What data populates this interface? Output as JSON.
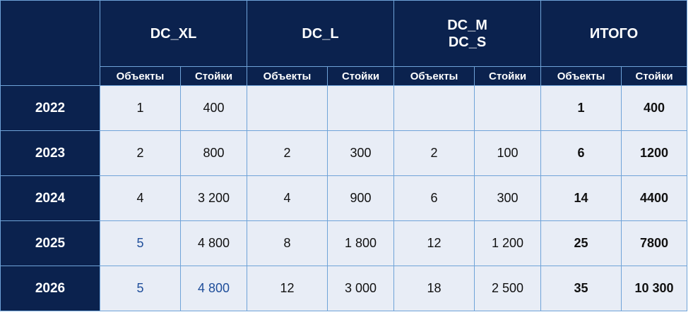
{
  "groups": [
    {
      "label": "DC_XL"
    },
    {
      "label": "DC_L"
    },
    {
      "label": "DC_M\nDC_S",
      "line1": "DC_M",
      "line2": "DC_S"
    },
    {
      "label": "ИТОГО"
    }
  ],
  "subheaders": {
    "objects": "Объекты",
    "racks": "Стойки"
  },
  "rows": [
    {
      "year": "2022",
      "cells": [
        "1",
        "400",
        "",
        "",
        "",
        "",
        "1",
        "400"
      ]
    },
    {
      "year": "2023",
      "cells": [
        "2",
        "800",
        "2",
        "300",
        "2",
        "100",
        "6",
        "1200"
      ]
    },
    {
      "year": "2024",
      "cells": [
        "4",
        "3 200",
        "4",
        "900",
        "6",
        "300",
        "14",
        "4400"
      ]
    },
    {
      "year": "2025",
      "cells": [
        "5",
        "4 800",
        "8",
        "1 800",
        "12",
        "1 200",
        "25",
        "7800"
      ]
    },
    {
      "year": "2026",
      "cells": [
        "5",
        "4 800",
        "12",
        "3 000",
        "18",
        "2 500",
        "35",
        "10 300"
      ]
    }
  ],
  "highlighted_cells": {
    "color": "#1f4e9a",
    "cells": [
      "2025 DC_XL Объекты",
      "2026 DC_XL Объекты",
      "2026 DC_XL Стойки"
    ]
  },
  "colors": {
    "header_bg": "#0b224e",
    "cell_bg": "#e8edf6",
    "border": "#6fa3d8"
  }
}
